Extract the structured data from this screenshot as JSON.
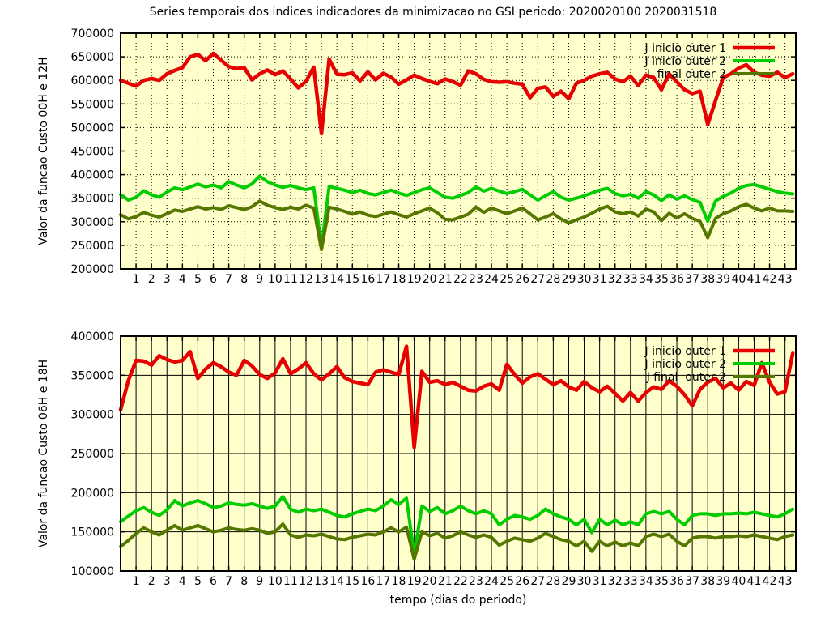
{
  "title": "Series temporais dos indices indicadores da minimizacao no GSI periodo: 2020020100 2020031518",
  "xlabel": "tempo (dias do periodo)",
  "colors": {
    "page_background": "#ffffff",
    "plot_background": "#ffffcc",
    "axis": "#000000",
    "line_red": "#e60000",
    "line_green": "#00cc00",
    "line_olive": "#557700"
  },
  "chart_data": [
    {
      "type": "line",
      "ylabel": "Valor da funcao Custo 00H e 12H",
      "ylim": [
        200000,
        700000
      ],
      "ytick_step": 50000,
      "ytick_labels": [
        "200000",
        "250000",
        "300000",
        "350000",
        "400000",
        "450000",
        "500000",
        "550000",
        "600000",
        "650000",
        "700000"
      ],
      "xlim": [
        0,
        43.7
      ],
      "xtick_labels": [
        "1",
        "2",
        "3",
        "4",
        "5",
        "6",
        "7",
        "8",
        "9",
        "10",
        "11",
        "12",
        "13",
        "14",
        "15",
        "16",
        "17",
        "18",
        "19",
        "20",
        "21",
        "22",
        "23",
        "24",
        "25",
        "26",
        "27",
        "28",
        "29",
        "30",
        "31",
        "32",
        "33",
        "34",
        "35",
        "36",
        "37",
        "38",
        "39",
        "40",
        "41",
        "42",
        "43"
      ],
      "grid_style": "dotted",
      "legend_position": "top-right",
      "x_start": 0,
      "x_step": 0.5,
      "legend": [
        {
          "label": "J inicio outer 1",
          "color": "#e60000",
          "width": 4.5
        },
        {
          "label": "J inicio outer 2",
          "color": "#00cc00",
          "width": 4
        },
        {
          "label": "J  final outer 2",
          "color": "#557700",
          "width": 4
        }
      ],
      "series": [
        {
          "name": "J inicio outer 1",
          "color": "#e60000",
          "width": 4.5,
          "values": [
            600000,
            594000,
            588000,
            600000,
            604000,
            600000,
            614000,
            621000,
            627000,
            650000,
            655000,
            642000,
            657000,
            643000,
            629000,
            625000,
            627000,
            601000,
            614000,
            622000,
            612000,
            620000,
            603000,
            584000,
            598000,
            628000,
            487000,
            645000,
            613000,
            612000,
            616000,
            599000,
            618000,
            601000,
            615000,
            607000,
            592000,
            601000,
            611000,
            604000,
            598000,
            593000,
            603000,
            597000,
            590000,
            620000,
            614000,
            602000,
            597000,
            596000,
            597000,
            594000,
            592000,
            563000,
            583000,
            586000,
            566000,
            577000,
            561000,
            594000,
            600000,
            609000,
            614000,
            617000,
            603000,
            597000,
            609000,
            589000,
            611000,
            606000,
            580000,
            614000,
            597000,
            580000,
            572000,
            577000,
            506000,
            557000,
            606000,
            614000,
            626000,
            633000,
            617000,
            611000,
            609000,
            617000,
            606000,
            614000
          ]
        },
        {
          "name": "J inicio outer 2",
          "color": "#00cc00",
          "width": 4,
          "values": [
            358000,
            346000,
            352000,
            366000,
            357000,
            352000,
            363000,
            372000,
            368000,
            374000,
            380000,
            374000,
            378000,
            372000,
            385000,
            378000,
            372000,
            380000,
            397000,
            385000,
            378000,
            373000,
            377000,
            372000,
            368000,
            372000,
            246000,
            375000,
            371000,
            367000,
            362000,
            367000,
            360000,
            357000,
            362000,
            367000,
            361000,
            356000,
            362000,
            368000,
            372000,
            362000,
            352000,
            350000,
            356000,
            362000,
            374000,
            365000,
            371000,
            365000,
            360000,
            364000,
            369000,
            357000,
            346000,
            355000,
            364000,
            352000,
            346000,
            350000,
            355000,
            361000,
            367000,
            371000,
            360000,
            355000,
            358000,
            350000,
            364000,
            357000,
            345000,
            357000,
            348000,
            355000,
            347000,
            341000,
            301000,
            344000,
            354000,
            361000,
            371000,
            377000,
            379000,
            374000,
            369000,
            364000,
            361000,
            359000
          ]
        },
        {
          "name": "J  final outer 2",
          "color": "#557700",
          "width": 4,
          "values": [
            315000,
            306000,
            311000,
            320000,
            314000,
            310000,
            317000,
            325000,
            322000,
            327000,
            332000,
            327000,
            330000,
            326000,
            334000,
            330000,
            326000,
            332000,
            344000,
            335000,
            330000,
            326000,
            331000,
            327000,
            335000,
            329000,
            241000,
            331000,
            327000,
            322000,
            316000,
            321000,
            314000,
            311000,
            316000,
            321000,
            315000,
            310000,
            317000,
            323000,
            329000,
            319000,
            305000,
            304000,
            310000,
            316000,
            331000,
            320000,
            329000,
            323000,
            317000,
            323000,
            329000,
            317000,
            304000,
            310000,
            317000,
            306000,
            298000,
            304000,
            310000,
            318000,
            327000,
            333000,
            321000,
            317000,
            321000,
            312000,
            327000,
            321000,
            302000,
            318000,
            308000,
            317000,
            307000,
            301000,
            266000,
            307000,
            317000,
            323000,
            332000,
            337000,
            329000,
            323000,
            329000,
            323000,
            323000,
            322000
          ]
        }
      ]
    },
    {
      "type": "line",
      "ylabel": "Valor da funcao Custo 06H e 18H",
      "ylim": [
        100000,
        400000
      ],
      "ytick_step": 50000,
      "ytick_labels": [
        "100000",
        "150000",
        "200000",
        "250000",
        "300000",
        "350000",
        "400000"
      ],
      "xlim": [
        0,
        43.7
      ],
      "xtick_labels": [
        "1",
        "2",
        "3",
        "4",
        "5",
        "6",
        "7",
        "8",
        "9",
        "10",
        "11",
        "12",
        "13",
        "14",
        "15",
        "16",
        "17",
        "18",
        "19",
        "20",
        "21",
        "22",
        "23",
        "24",
        "25",
        "26",
        "27",
        "28",
        "29",
        "30",
        "31",
        "32",
        "33",
        "34",
        "35",
        "36",
        "37",
        "38",
        "39",
        "40",
        "41",
        "42",
        "43"
      ],
      "grid_style": "solid",
      "legend_position": "top-right",
      "x_start": 0,
      "x_step": 0.5,
      "legend": [
        {
          "label": "J inicio outer 1",
          "color": "#e60000",
          "width": 4.5
        },
        {
          "label": "J inicio outer 2",
          "color": "#00cc00",
          "width": 4
        },
        {
          "label": "J final  outer 2",
          "color": "#557700",
          "width": 4
        }
      ],
      "series": [
        {
          "name": "J inicio outer 1",
          "color": "#e60000",
          "width": 4.5,
          "values": [
            306000,
            343000,
            369000,
            368000,
            363000,
            375000,
            370000,
            367000,
            369000,
            380000,
            346000,
            358000,
            366000,
            361000,
            354000,
            350000,
            369000,
            362000,
            351000,
            346000,
            353000,
            371000,
            352000,
            358000,
            366000,
            352000,
            344000,
            352000,
            361000,
            347000,
            342000,
            340000,
            338000,
            354000,
            357000,
            354000,
            351000,
            387000,
            258000,
            355000,
            341000,
            343000,
            338000,
            341000,
            336000,
            331000,
            330000,
            336000,
            339000,
            331000,
            364000,
            351000,
            340000,
            348000,
            352000,
            345000,
            338000,
            343000,
            335000,
            331000,
            342000,
            334000,
            329000,
            336000,
            327000,
            317000,
            328000,
            317000,
            328000,
            335000,
            332000,
            343000,
            336000,
            325000,
            311000,
            332000,
            341000,
            346000,
            334000,
            340000,
            331000,
            342000,
            337000,
            366000,
            341000,
            326000,
            329000,
            378000
          ]
        },
        {
          "name": "J inicio outer 2",
          "color": "#00cc00",
          "width": 4,
          "values": [
            163000,
            170000,
            177000,
            181000,
            175000,
            171000,
            178000,
            190000,
            183000,
            187000,
            190000,
            186000,
            181000,
            183000,
            187000,
            185000,
            184000,
            186000,
            183000,
            180000,
            183000,
            195000,
            179000,
            175000,
            179000,
            177000,
            179000,
            175000,
            171000,
            169000,
            173000,
            176000,
            179000,
            177000,
            183000,
            191000,
            185000,
            193000,
            121000,
            183000,
            176000,
            181000,
            173000,
            177000,
            183000,
            177000,
            173000,
            177000,
            173000,
            159000,
            166000,
            171000,
            169000,
            166000,
            171000,
            179000,
            173000,
            169000,
            166000,
            159000,
            166000,
            149000,
            166000,
            159000,
            165000,
            159000,
            163000,
            159000,
            173000,
            176000,
            173000,
            176000,
            166000,
            159000,
            171000,
            173000,
            173000,
            171000,
            173000,
            173000,
            174000,
            173000,
            175000,
            173000,
            171000,
            169000,
            173000,
            179000
          ]
        },
        {
          "name": "J final  outer 2",
          "color": "#557700",
          "width": 4,
          "values": [
            131000,
            139000,
            148000,
            155000,
            150000,
            146000,
            152000,
            158000,
            152000,
            155000,
            158000,
            154000,
            150000,
            152000,
            155000,
            153000,
            152000,
            154000,
            152000,
            148000,
            150000,
            160000,
            146000,
            143000,
            146000,
            145000,
            147000,
            144000,
            141000,
            140000,
            143000,
            145000,
            147000,
            146000,
            150000,
            155000,
            150000,
            156000,
            115000,
            150000,
            145000,
            148000,
            142000,
            145000,
            150000,
            146000,
            143000,
            146000,
            143000,
            133000,
            138000,
            142000,
            140000,
            138000,
            142000,
            148000,
            144000,
            140000,
            138000,
            132000,
            138000,
            125000,
            138000,
            132000,
            137000,
            132000,
            136000,
            132000,
            144000,
            147000,
            144000,
            147000,
            138000,
            132000,
            142000,
            144000,
            144000,
            142000,
            144000,
            144000,
            145000,
            144000,
            146000,
            144000,
            142000,
            140000,
            144000,
            146000
          ]
        }
      ]
    }
  ]
}
